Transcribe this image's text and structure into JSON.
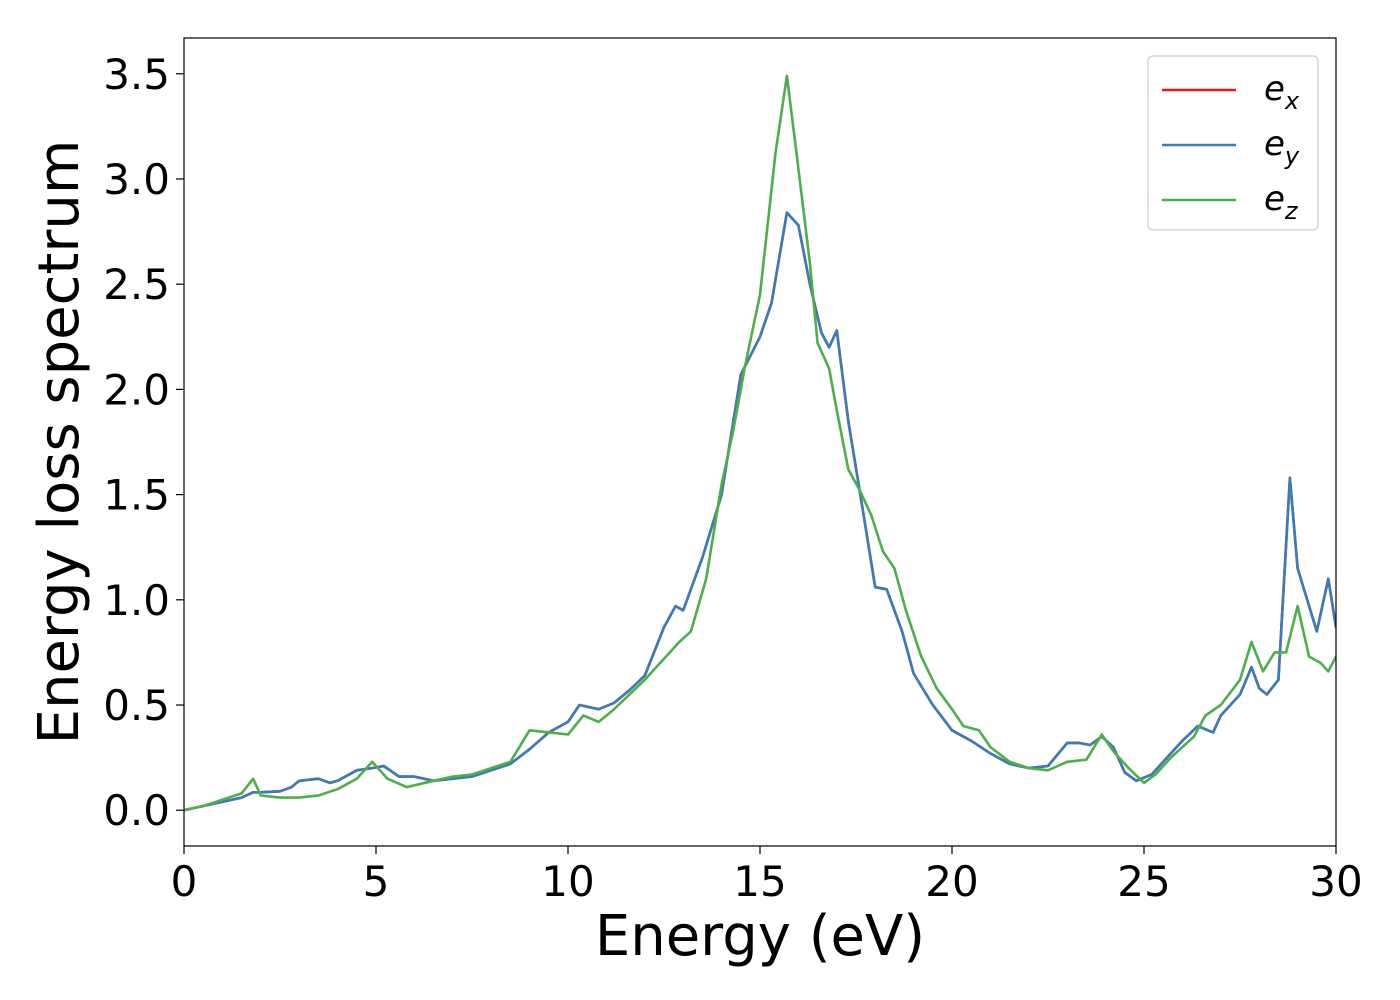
{
  "chart_data": {
    "type": "line",
    "title": "",
    "xlabel": "Energy (eV)",
    "ylabel": "Energy loss spectrum",
    "xlim": [
      0,
      30
    ],
    "ylim": [
      -0.17,
      3.67
    ],
    "xticks": [
      0,
      5,
      10,
      15,
      20,
      25,
      30
    ],
    "xtick_labels": [
      "0",
      "5",
      "10",
      "15",
      "20",
      "25",
      "30"
    ],
    "yticks": [
      0.0,
      0.5,
      1.0,
      1.5,
      2.0,
      2.5,
      3.0,
      3.5
    ],
    "ytick_labels": [
      "0.0",
      "0.5",
      "1.0",
      "1.5",
      "2.0",
      "2.5",
      "3.0",
      "3.5"
    ],
    "grid": false,
    "legend_position": "top-right",
    "series": [
      {
        "name": "e_x",
        "base": "e",
        "sub": "x",
        "color": "#e41a1c",
        "x": [
          0,
          0.5,
          1,
          1.5,
          1.8,
          2,
          2.5,
          2.8,
          3,
          3.5,
          3.8,
          4,
          4.5,
          4.9,
          5.2,
          5.6,
          6,
          6.5,
          7,
          7.5,
          8,
          8.5,
          9,
          9.5,
          10,
          10.3,
          10.8,
          11.2,
          11.6,
          12,
          12.5,
          12.8,
          13,
          13.5,
          14,
          14.5,
          15,
          15.3,
          15.7,
          16,
          16.3,
          16.6,
          16.8,
          17,
          17.3,
          17.7,
          18,
          18.3,
          18.7,
          19,
          19.5,
          20,
          20.5,
          21,
          21.5,
          22,
          22.5,
          23,
          23.3,
          23.6,
          23.9,
          24.2,
          24.5,
          24.8,
          25.2,
          25.6,
          26,
          26.4,
          26.8,
          27,
          27.5,
          27.8,
          28,
          28.2,
          28.5,
          28.8,
          29,
          29.5,
          29.8,
          30
        ],
        "y": [
          0,
          0.02,
          0.04,
          0.06,
          0.085,
          0.085,
          0.09,
          0.11,
          0.14,
          0.15,
          0.13,
          0.14,
          0.19,
          0.2,
          0.21,
          0.16,
          0.16,
          0.14,
          0.15,
          0.16,
          0.19,
          0.22,
          0.29,
          0.37,
          0.42,
          0.5,
          0.48,
          0.51,
          0.57,
          0.64,
          0.87,
          0.97,
          0.95,
          1.2,
          1.5,
          2.07,
          2.25,
          2.41,
          2.84,
          2.78,
          2.5,
          2.27,
          2.2,
          2.28,
          1.85,
          1.4,
          1.06,
          1.05,
          0.85,
          0.65,
          0.5,
          0.38,
          0.33,
          0.27,
          0.22,
          0.2,
          0.21,
          0.32,
          0.32,
          0.31,
          0.35,
          0.3,
          0.18,
          0.14,
          0.17,
          0.25,
          0.33,
          0.4,
          0.37,
          0.45,
          0.55,
          0.68,
          0.58,
          0.55,
          0.62,
          1.58,
          1.15,
          0.85,
          1.1,
          0.87
        ]
      },
      {
        "name": "e_y",
        "base": "e",
        "sub": "y",
        "color": "#377eb8",
        "x": [
          0,
          0.5,
          1,
          1.5,
          1.8,
          2,
          2.5,
          2.8,
          3,
          3.5,
          3.8,
          4,
          4.5,
          4.9,
          5.2,
          5.6,
          6,
          6.5,
          7,
          7.5,
          8,
          8.5,
          9,
          9.5,
          10,
          10.3,
          10.8,
          11.2,
          11.6,
          12,
          12.5,
          12.8,
          13,
          13.5,
          14,
          14.5,
          15,
          15.3,
          15.7,
          16,
          16.3,
          16.6,
          16.8,
          17,
          17.3,
          17.7,
          18,
          18.3,
          18.7,
          19,
          19.5,
          20,
          20.5,
          21,
          21.5,
          22,
          22.5,
          23,
          23.3,
          23.6,
          23.9,
          24.2,
          24.5,
          24.8,
          25.2,
          25.6,
          26,
          26.4,
          26.8,
          27,
          27.5,
          27.8,
          28,
          28.2,
          28.5,
          28.8,
          29,
          29.5,
          29.8,
          30
        ],
        "y": [
          0,
          0.02,
          0.04,
          0.06,
          0.085,
          0.085,
          0.09,
          0.11,
          0.14,
          0.15,
          0.13,
          0.14,
          0.19,
          0.2,
          0.21,
          0.16,
          0.16,
          0.14,
          0.15,
          0.16,
          0.19,
          0.22,
          0.29,
          0.37,
          0.42,
          0.5,
          0.48,
          0.51,
          0.57,
          0.64,
          0.87,
          0.97,
          0.95,
          1.2,
          1.5,
          2.07,
          2.25,
          2.41,
          2.84,
          2.78,
          2.5,
          2.27,
          2.2,
          2.28,
          1.85,
          1.4,
          1.06,
          1.05,
          0.85,
          0.65,
          0.5,
          0.38,
          0.33,
          0.27,
          0.22,
          0.2,
          0.21,
          0.32,
          0.32,
          0.31,
          0.35,
          0.3,
          0.18,
          0.14,
          0.17,
          0.25,
          0.33,
          0.4,
          0.37,
          0.45,
          0.55,
          0.68,
          0.58,
          0.55,
          0.62,
          1.58,
          1.15,
          0.85,
          1.1,
          0.87
        ]
      },
      {
        "name": "e_z",
        "base": "e",
        "sub": "z",
        "color": "#4daf4a",
        "x": [
          0,
          0.5,
          1,
          1.5,
          1.8,
          2,
          2.5,
          3,
          3.5,
          4,
          4.5,
          4.9,
          5.3,
          5.8,
          6.5,
          7,
          7.5,
          8,
          8.5,
          9,
          9.5,
          10,
          10.4,
          10.8,
          11.2,
          11.6,
          12,
          12.5,
          12.9,
          13.2,
          13.6,
          14,
          14.3,
          14.6,
          15,
          15.4,
          15.7,
          16,
          16.3,
          16.5,
          16.8,
          17,
          17.3,
          17.6,
          17.9,
          18.2,
          18.5,
          18.8,
          19.2,
          19.6,
          20,
          20.3,
          20.7,
          21,
          21.5,
          22,
          22.5,
          23,
          23.5,
          23.9,
          24.2,
          24.6,
          25,
          25.3,
          25.7,
          26,
          26.3,
          26.6,
          27,
          27.5,
          27.8,
          28.1,
          28.4,
          28.7,
          29,
          29.3,
          29.6,
          29.8,
          30
        ],
        "y": [
          0,
          0.02,
          0.05,
          0.08,
          0.15,
          0.07,
          0.06,
          0.06,
          0.07,
          0.1,
          0.15,
          0.23,
          0.15,
          0.11,
          0.14,
          0.16,
          0.17,
          0.2,
          0.23,
          0.38,
          0.37,
          0.36,
          0.45,
          0.42,
          0.48,
          0.55,
          0.62,
          0.72,
          0.8,
          0.85,
          1.1,
          1.55,
          1.8,
          2.1,
          2.45,
          3.12,
          3.49,
          3.05,
          2.6,
          2.22,
          2.1,
          1.9,
          1.62,
          1.52,
          1.4,
          1.23,
          1.15,
          0.95,
          0.73,
          0.58,
          0.48,
          0.4,
          0.38,
          0.3,
          0.23,
          0.2,
          0.19,
          0.23,
          0.24,
          0.36,
          0.28,
          0.2,
          0.13,
          0.17,
          0.25,
          0.3,
          0.35,
          0.45,
          0.5,
          0.62,
          0.8,
          0.66,
          0.75,
          0.75,
          0.97,
          0.73,
          0.7,
          0.66,
          0.73
        ]
      }
    ]
  }
}
